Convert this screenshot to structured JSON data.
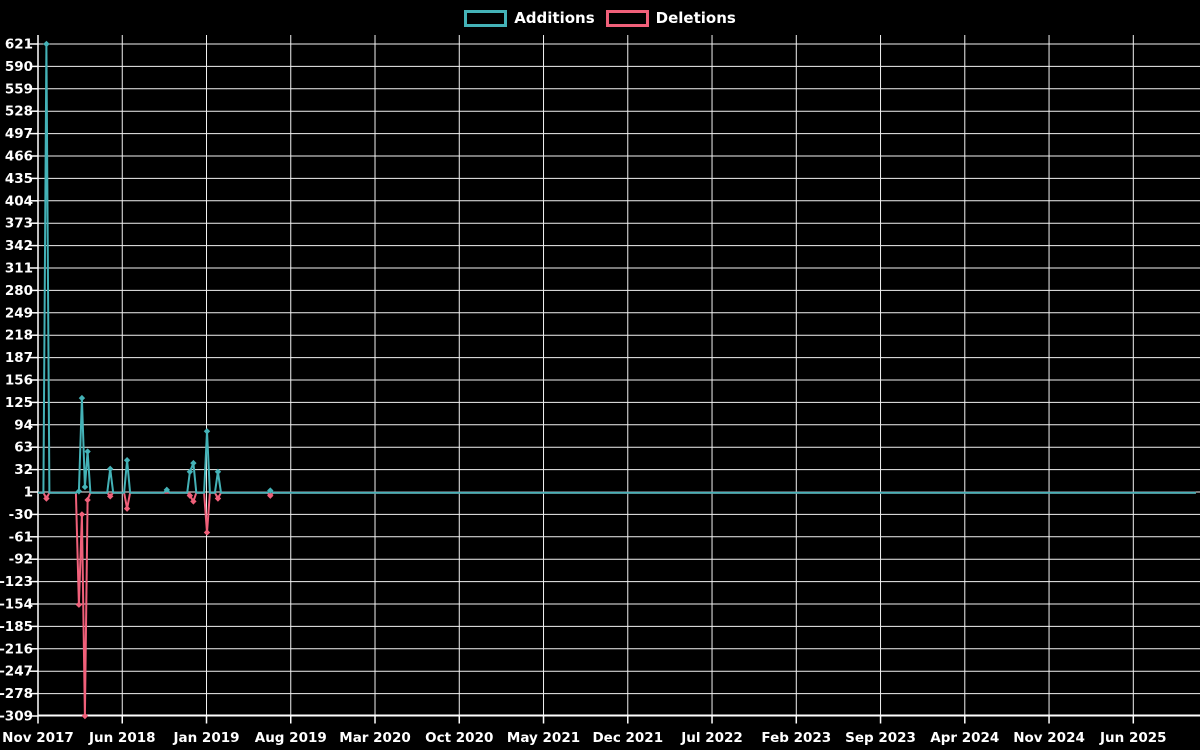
{
  "legend": {
    "items": [
      {
        "label": "Additions",
        "color": "#44b2b7",
        "swatch_icon": "teal-outline-box"
      },
      {
        "label": "Deletions",
        "color": "#f0607a",
        "swatch_icon": "pink-outline-box"
      }
    ]
  },
  "colors": {
    "background": "#000000",
    "grid": "#f2f2f2",
    "axis": "#ffffff",
    "text": "#ffffff",
    "additions": "#44b2b7",
    "deletions": "#f0607a"
  },
  "chart_data": {
    "type": "line",
    "title": "",
    "xlabel": "",
    "ylabel": "",
    "grid": true,
    "legend_position": "top-center",
    "x_tick_labels": [
      "Nov 2017",
      "Jun 2018",
      "Jan 2019",
      "Aug 2019",
      "Mar 2020",
      "Oct 2020",
      "May 2021",
      "Dec 2021",
      "Jul 2022",
      "Feb 2023",
      "Sep 2023",
      "Apr 2024",
      "Nov 2024",
      "Jun 2025"
    ],
    "x_tick_month_offsets": [
      0,
      7,
      14,
      21,
      28,
      35,
      42,
      49,
      56,
      63,
      70,
      77,
      84,
      91
    ],
    "x_range_months": [
      0,
      96.2
    ],
    "y_ticks": [
      621,
      590,
      559,
      528,
      497,
      466,
      435,
      404,
      373,
      342,
      311,
      280,
      249,
      218,
      187,
      156,
      125,
      94,
      63,
      32,
      1,
      -30,
      -61,
      -92,
      -123,
      -154,
      -185,
      -216,
      -247,
      -278,
      -309
    ],
    "ylim": [
      -309,
      621
    ],
    "series": [
      {
        "name": "Additions",
        "color": "#44b2b7",
        "marker": "diamond",
        "points": [
          [
            0,
            0
          ],
          [
            0.45,
            0
          ],
          [
            0.7,
            621
          ],
          [
            0.95,
            0
          ],
          [
            3.15,
            0
          ],
          [
            3.4,
            2
          ],
          [
            3.65,
            131
          ],
          [
            3.9,
            8
          ],
          [
            4.12,
            57
          ],
          [
            4.35,
            0
          ],
          [
            5.75,
            0
          ],
          [
            6.0,
            33
          ],
          [
            6.25,
            0
          ],
          [
            7.15,
            0
          ],
          [
            7.4,
            45
          ],
          [
            7.65,
            0
          ],
          [
            10.45,
            0
          ],
          [
            10.7,
            4
          ],
          [
            10.95,
            0
          ],
          [
            12.4,
            0
          ],
          [
            12.62,
            29
          ],
          [
            12.91,
            41
          ],
          [
            13.15,
            0
          ],
          [
            13.8,
            0
          ],
          [
            14.04,
            85
          ],
          [
            14.28,
            0
          ],
          [
            14.7,
            0
          ],
          [
            14.95,
            29
          ],
          [
            15.2,
            0
          ],
          [
            19.05,
            0
          ],
          [
            19.3,
            3
          ],
          [
            19.55,
            0
          ],
          [
            96.2,
            0
          ]
        ]
      },
      {
        "name": "Deletions",
        "color": "#f0607a",
        "marker": "diamond",
        "points": [
          [
            0,
            0
          ],
          [
            0.45,
            0
          ],
          [
            0.7,
            -8
          ],
          [
            0.95,
            0
          ],
          [
            3.15,
            0
          ],
          [
            3.4,
            -155
          ],
          [
            3.65,
            -30
          ],
          [
            3.9,
            -309
          ],
          [
            4.12,
            -10
          ],
          [
            4.35,
            0
          ],
          [
            5.75,
            0
          ],
          [
            6.0,
            -5
          ],
          [
            6.25,
            0
          ],
          [
            7.15,
            0
          ],
          [
            7.4,
            -22
          ],
          [
            7.65,
            0
          ],
          [
            12.4,
            0
          ],
          [
            12.62,
            -4
          ],
          [
            12.91,
            -12
          ],
          [
            13.15,
            0
          ],
          [
            13.8,
            0
          ],
          [
            14.04,
            -55
          ],
          [
            14.28,
            0
          ],
          [
            14.7,
            0
          ],
          [
            14.95,
            -8
          ],
          [
            15.2,
            0
          ],
          [
            19.05,
            0
          ],
          [
            19.3,
            -4
          ],
          [
            19.55,
            0
          ],
          [
            96.2,
            0
          ]
        ]
      }
    ]
  }
}
